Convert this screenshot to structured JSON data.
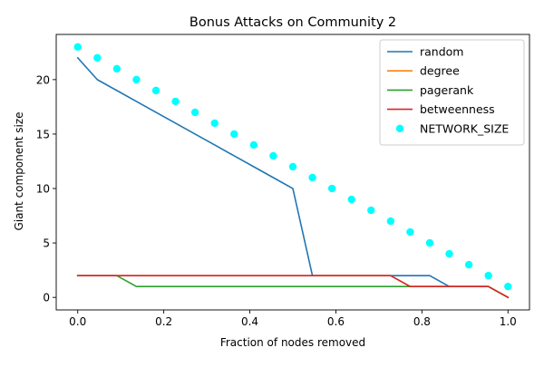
{
  "chart_data": {
    "type": "line",
    "title": "Bonus Attacks on Community 2",
    "xlabel": "Fraction of nodes removed",
    "ylabel": "Giant component size",
    "xlim": [
      -0.05,
      1.05
    ],
    "ylim": [
      -1.15,
      24.15
    ],
    "xticks": [
      0.0,
      0.2,
      0.4,
      0.6,
      0.8,
      1.0
    ],
    "xtick_labels": [
      "0.0",
      "0.2",
      "0.4",
      "0.6",
      "0.8",
      "1.0"
    ],
    "yticks": [
      0,
      5,
      10,
      15,
      20
    ],
    "ytick_labels": [
      "0",
      "5",
      "10",
      "15",
      "20"
    ],
    "grid": false,
    "legend_position": "upper right",
    "x": [
      0.0,
      0.0455,
      0.0909,
      0.1364,
      0.1818,
      0.2273,
      0.2727,
      0.3182,
      0.3636,
      0.4091,
      0.4545,
      0.5,
      0.5455,
      0.5909,
      0.6364,
      0.6818,
      0.7273,
      0.7727,
      0.8182,
      0.8636,
      0.9091,
      0.9545,
      1.0
    ],
    "series": [
      {
        "name": "random",
        "kind": "line",
        "color": "#1f77b4",
        "values": [
          22,
          20,
          19,
          18,
          17,
          16,
          15,
          14,
          13,
          12,
          11,
          10,
          2,
          2,
          2,
          2,
          2,
          2,
          2,
          1,
          1,
          1,
          0
        ]
      },
      {
        "name": "degree",
        "kind": "line",
        "color": "#ff7f0e",
        "values": [
          2,
          2,
          2,
          2,
          2,
          2,
          2,
          2,
          2,
          2,
          2,
          2,
          2,
          2,
          2,
          2,
          2,
          1,
          1,
          1,
          1,
          1,
          0
        ]
      },
      {
        "name": "pagerank",
        "kind": "line",
        "color": "#2ca02c",
        "values": [
          2,
          2,
          2,
          1,
          1,
          1,
          1,
          1,
          1,
          1,
          1,
          1,
          1,
          1,
          1,
          1,
          1,
          1,
          1,
          1,
          1,
          1,
          0
        ]
      },
      {
        "name": "betweenness",
        "kind": "line",
        "color": "#d62728",
        "values": [
          2,
          2,
          2,
          2,
          2,
          2,
          2,
          2,
          2,
          2,
          2,
          2,
          2,
          2,
          2,
          2,
          2,
          1,
          1,
          1,
          1,
          1,
          0
        ]
      },
      {
        "name": "NETWORK_SIZE",
        "kind": "scatter",
        "color": "#00ffff",
        "values": [
          23,
          22,
          21,
          20,
          19,
          18,
          17,
          16,
          15,
          14,
          13,
          12,
          11,
          10,
          9,
          8,
          7,
          6,
          5,
          4,
          3,
          2,
          1
        ]
      }
    ]
  }
}
